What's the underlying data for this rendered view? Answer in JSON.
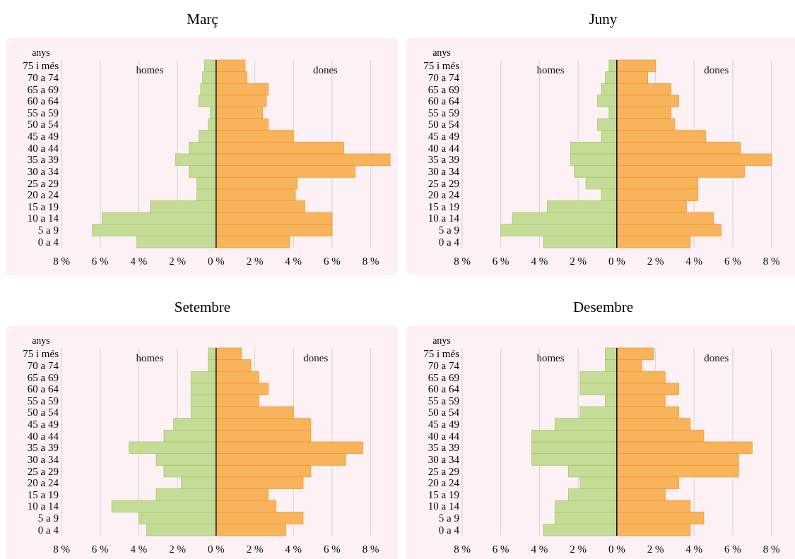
{
  "chart_data": [
    {
      "type": "bar",
      "orientation": "horizontal",
      "title": "Març",
      "ylabel": "anys",
      "grid": "x",
      "categories": [
        "75 i més",
        "70 a 74",
        "65 a 69",
        "60 a 64",
        "55 a 59",
        "50 a 54",
        "45 a 49",
        "40 a 44",
        "35 a 39",
        "30 a 34",
        "25 a 29",
        "20 a 24",
        "15 a 19",
        "10 a 14",
        "5 a 9",
        "0 a 4"
      ],
      "xlim": [
        8,
        0
      ],
      "xticks": [
        {
          "value": 8,
          "label": "8 %"
        },
        {
          "value": 6,
          "label": "6 %"
        },
        {
          "value": 4,
          "label": "4 %"
        },
        {
          "value": 2,
          "label": "2 %"
        },
        {
          "value": 0,
          "label": "0 %"
        }
      ],
      "series": [
        {
          "name": "homes",
          "color": "#c5dc98",
          "values": [
            0.6,
            0.7,
            0.8,
            0.9,
            0.3,
            0.4,
            0.9,
            1.4,
            2.1,
            1.4,
            1.0,
            1.0,
            3.4,
            5.9,
            6.4,
            4.1
          ]
        }
      ]
    },
    {
      "type": "bar",
      "orientation": "horizontal",
      "grid": "x",
      "tick_labels": "x",
      "categories": [
        null,
        null,
        null,
        null,
        null,
        null,
        null,
        null,
        null,
        null,
        null,
        null,
        null,
        null,
        null,
        null
      ],
      "xlim": [
        0,
        9
      ],
      "xticks": [
        {
          "value": 2,
          "label": "2 %"
        },
        {
          "value": 4,
          "label": "4 %"
        },
        {
          "value": 6,
          "label": "6 %"
        },
        {
          "value": 8,
          "label": "8 %"
        }
      ],
      "series": [
        {
          "name": "dones",
          "color": "#f8b45c",
          "values": [
            1.5,
            1.6,
            2.7,
            2.6,
            2.4,
            2.7,
            4.0,
            6.6,
            9.0,
            7.2,
            4.2,
            4.1,
            4.6,
            6.0,
            6.0,
            3.8
          ]
        }
      ]
    },
    {
      "type": "bar",
      "orientation": "horizontal",
      "title": "Juny",
      "ylabel": "anys",
      "grid": "x",
      "categories": [
        "75 i més",
        "70 a 74",
        "65 a 69",
        "60 a 64",
        "55 a 59",
        "50 a 54",
        "45 a 49",
        "40 a 44",
        "35 a 39",
        "30 a 34",
        "25 a 29",
        "20 a 24",
        "15 a 19",
        "10 a 14",
        "5 a 9",
        "0 a 4"
      ],
      "xlim": [
        8,
        0
      ],
      "xticks": [
        {
          "value": 8,
          "label": "8 %"
        },
        {
          "value": 6,
          "label": "6 %"
        },
        {
          "value": 4,
          "label": "4 %"
        },
        {
          "value": 2,
          "label": "2 %"
        },
        {
          "value": 0,
          "label": "0 %"
        }
      ],
      "series": [
        {
          "name": "homes",
          "color": "#c5dc98",
          "values": [
            0.4,
            0.6,
            0.8,
            1.0,
            0.4,
            1.0,
            0.8,
            2.4,
            2.4,
            2.2,
            1.6,
            0.8,
            3.6,
            5.4,
            6.0,
            3.8
          ]
        }
      ]
    },
    {
      "type": "bar",
      "orientation": "horizontal",
      "grid": "x",
      "tick_labels": "x",
      "categories": [
        null,
        null,
        null,
        null,
        null,
        null,
        null,
        null,
        null,
        null,
        null,
        null,
        null,
        null,
        null,
        null
      ],
      "xlim": [
        0,
        8
      ],
      "xticks": [
        {
          "value": 2,
          "label": "2 %"
        },
        {
          "value": 4,
          "label": "4 %"
        },
        {
          "value": 6,
          "label": "6 %"
        },
        {
          "value": 8,
          "label": "8 %"
        }
      ],
      "series": [
        {
          "name": "dones",
          "color": "#f8b45c",
          "values": [
            2.0,
            1.6,
            2.8,
            3.2,
            2.8,
            3.0,
            4.6,
            6.4,
            8.0,
            6.6,
            4.2,
            4.2,
            3.6,
            5.0,
            5.4,
            3.8
          ]
        }
      ]
    },
    {
      "type": "bar",
      "orientation": "horizontal",
      "title": "Setembre",
      "ylabel": "anys",
      "grid": "x",
      "categories": [
        "75 i més",
        "70 a 74",
        "65 a 69",
        "60 a 64",
        "55 a 59",
        "50 a 54",
        "45 a 49",
        "40 a 44",
        "35 a 39",
        "30 a 34",
        "25 a 29",
        "20 a 24",
        "15 a 19",
        "10 a 14",
        "5 a 9",
        "0 a 4"
      ],
      "xlim": [
        8,
        0
      ],
      "xticks": [
        {
          "value": 8,
          "label": "8 %"
        },
        {
          "value": 6,
          "label": "6 %"
        },
        {
          "value": 4,
          "label": "4 %"
        },
        {
          "value": 2,
          "label": "2 %"
        },
        {
          "value": 0,
          "label": "0 %"
        }
      ],
      "series": [
        {
          "name": "homes",
          "color": "#c5dc98",
          "values": [
            0.4,
            0.4,
            1.3,
            1.3,
            1.3,
            1.3,
            2.2,
            2.7,
            4.5,
            3.1,
            2.7,
            1.8,
            3.1,
            5.4,
            4.0,
            3.6
          ]
        }
      ]
    },
    {
      "type": "bar",
      "orientation": "horizontal",
      "grid": "x",
      "tick_labels": "x",
      "categories": [
        null,
        null,
        null,
        null,
        null,
        null,
        null,
        null,
        null,
        null,
        null,
        null,
        null,
        null,
        null,
        null
      ],
      "xlim": [
        0,
        8
      ],
      "xticks": [
        {
          "value": 2,
          "label": "2 %"
        },
        {
          "value": 4,
          "label": "4 %"
        },
        {
          "value": 6,
          "label": "6 %"
        },
        {
          "value": 8,
          "label": "8 %"
        }
      ],
      "series": [
        {
          "name": "dones",
          "color": "#f8b45c",
          "values": [
            1.3,
            1.8,
            2.2,
            2.7,
            2.2,
            4.0,
            4.9,
            4.9,
            7.6,
            6.7,
            4.9,
            4.5,
            2.7,
            3.1,
            4.5,
            3.6
          ]
        }
      ]
    },
    {
      "type": "bar",
      "orientation": "horizontal",
      "title": "Desembre",
      "ylabel": "anys",
      "grid": "x",
      "categories": [
        "75 i més",
        "70 a 74",
        "65 a 69",
        "60 a 64",
        "55 a 59",
        "50 a 54",
        "45 a 49",
        "40 a 44",
        "35 a 39",
        "30 a 34",
        "25 a 29",
        "20 a 24",
        "15 a 19",
        "10 a 14",
        "5 a 9",
        "0 a 4"
      ],
      "xlim": [
        8,
        0
      ],
      "xticks": [
        {
          "value": 8,
          "label": "8 %"
        },
        {
          "value": 6,
          "label": "6 %"
        },
        {
          "value": 4,
          "label": "4 %"
        },
        {
          "value": 2,
          "label": "2 %"
        },
        {
          "value": 0,
          "label": "0 %"
        }
      ],
      "series": [
        {
          "name": "homes",
          "color": "#c5dc98",
          "values": [
            0.6,
            0.6,
            1.9,
            1.9,
            0.6,
            1.9,
            3.2,
            4.4,
            4.4,
            4.4,
            2.5,
            1.9,
            2.5,
            3.2,
            3.2,
            3.8
          ]
        }
      ]
    },
    {
      "type": "bar",
      "orientation": "horizontal",
      "grid": "x",
      "tick_labels": "x",
      "categories": [
        null,
        null,
        null,
        null,
        null,
        null,
        null,
        null,
        null,
        null,
        null,
        null,
        null,
        null,
        null,
        null
      ],
      "xlim": [
        0,
        8
      ],
      "xticks": [
        {
          "value": 2,
          "label": "2 %"
        },
        {
          "value": 4,
          "label": "4 %"
        },
        {
          "value": 6,
          "label": "6 %"
        },
        {
          "value": 8,
          "label": "8 %"
        }
      ],
      "series": [
        {
          "name": "dones",
          "color": "#f8b45c",
          "values": [
            1.9,
            1.3,
            2.5,
            3.2,
            2.5,
            3.2,
            3.8,
            4.5,
            7.0,
            6.3,
            6.3,
            3.2,
            2.5,
            3.8,
            4.5,
            3.8
          ]
        }
      ]
    }
  ]
}
